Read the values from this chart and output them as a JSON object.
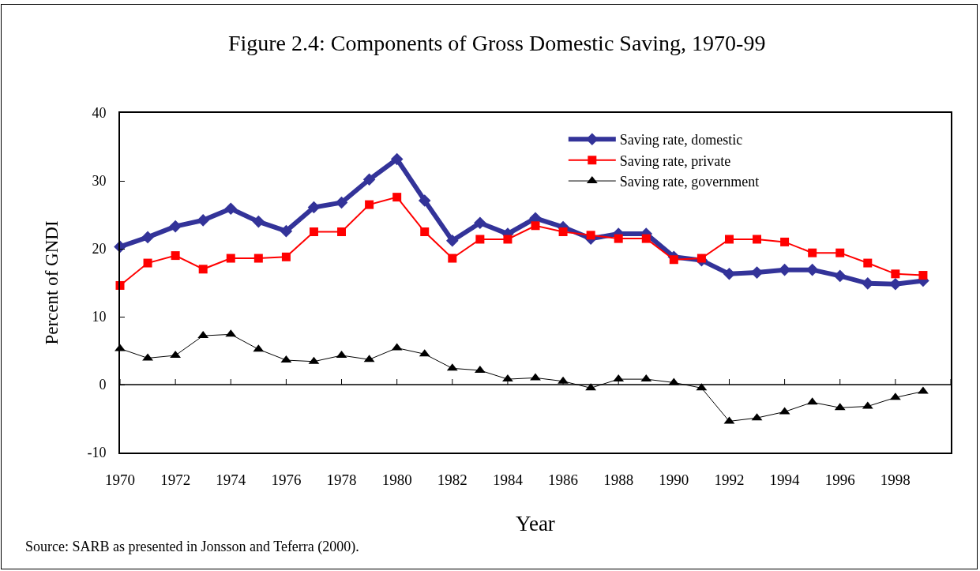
{
  "chart_data": {
    "type": "line",
    "title": "Figure 2.4: Components of Gross Domestic Saving, 1970-99",
    "xlabel": "Year",
    "ylabel": "Percent of GNDI",
    "annotations": [
      "Source: SARB as presented in Jonsson and Teferra (2000)."
    ],
    "x": [
      1970,
      1971,
      1972,
      1973,
      1974,
      1975,
      1976,
      1977,
      1978,
      1979,
      1980,
      1981,
      1982,
      1983,
      1984,
      1985,
      1986,
      1987,
      1988,
      1989,
      1990,
      1991,
      1992,
      1993,
      1994,
      1995,
      1996,
      1997,
      1998,
      1999
    ],
    "series": [
      {
        "name": "Saving rate, domestic",
        "color": "#333399",
        "marker": "diamond",
        "values": [
          20.3,
          21.7,
          23.3,
          24.2,
          25.9,
          24.0,
          22.6,
          26.1,
          26.8,
          30.2,
          33.2,
          27.1,
          21.2,
          23.8,
          22.2,
          24.5,
          23.2,
          21.5,
          22.2,
          22.2,
          18.8,
          18.3,
          16.3,
          16.5,
          16.9,
          16.9,
          16.0,
          14.9,
          14.8,
          15.3
        ]
      },
      {
        "name": "Saving rate, private",
        "color": "#ff0000",
        "marker": "square",
        "values": [
          14.6,
          17.9,
          19.0,
          17.0,
          18.6,
          18.6,
          18.8,
          22.5,
          22.5,
          26.5,
          27.6,
          22.5,
          18.6,
          21.4,
          21.4,
          23.4,
          22.5,
          22.0,
          21.5,
          21.5,
          18.4,
          18.6,
          21.4,
          21.4,
          21.0,
          19.4,
          19.4,
          17.9,
          16.3,
          16.1
        ]
      },
      {
        "name": "Saving rate, government",
        "color": "#000000",
        "marker": "triangle",
        "values": [
          5.3,
          3.9,
          4.3,
          7.2,
          7.4,
          5.2,
          3.6,
          3.4,
          4.3,
          3.7,
          5.4,
          4.5,
          2.4,
          2.1,
          0.8,
          1.0,
          0.5,
          -0.5,
          0.8,
          0.8,
          0.3,
          -0.5,
          -5.4,
          -4.9,
          -4.0,
          -2.6,
          -3.4,
          -3.2,
          -1.9,
          -1.0
        ]
      }
    ],
    "xlim": [
      1970,
      2000
    ],
    "xticks": [
      1970,
      1972,
      1974,
      1976,
      1978,
      1980,
      1982,
      1984,
      1986,
      1988,
      1990,
      1992,
      1994,
      1996,
      1998,
      {
        "value": 2000,
        "label": null
      }
    ],
    "ylim": [
      -10,
      40
    ],
    "yticks": [
      -10,
      0,
      10,
      20,
      30,
      40
    ],
    "ref_lines": [
      {
        "axis": "y",
        "value": 0,
        "color": "#000000"
      }
    ],
    "grid": false,
    "legend": "top right",
    "line_style": "solid"
  }
}
